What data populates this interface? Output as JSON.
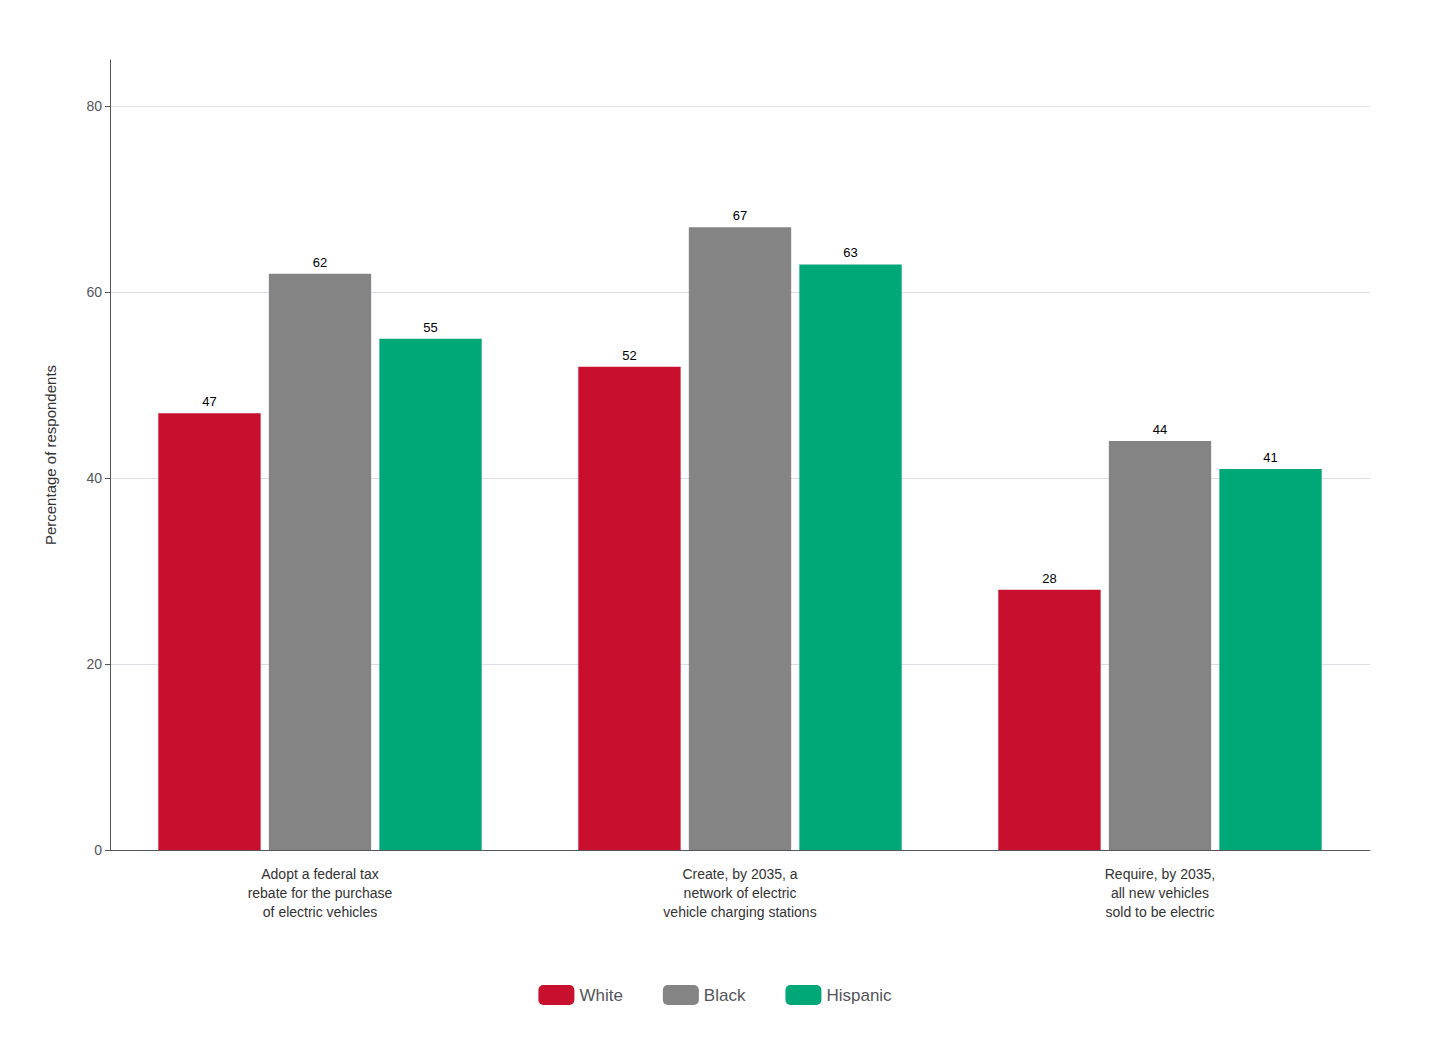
{
  "chart_data": {
    "type": "bar",
    "categories": [
      "Adopt a federal tax\nrebate for the purchase\nof electric vehicles",
      "Create, by 2035, a\nnetwork of electric\nvehicle charging stations",
      "Require, by 2035,\nall new vehicles\nsold to be electric"
    ],
    "series": [
      {
        "name": "White",
        "color": "#C8102E",
        "values": [
          47,
          52,
          28
        ]
      },
      {
        "name": "Black",
        "color": "#848484",
        "values": [
          62,
          67,
          44
        ]
      },
      {
        "name": "Hispanic",
        "color": "#00A878",
        "values": [
          55,
          63,
          41
        ]
      }
    ],
    "ylabel": "Percentage of respondents",
    "ylim": [
      0,
      85
    ],
    "yticks": [
      0,
      20,
      40,
      60,
      80
    ],
    "grid": true,
    "data_labels": true,
    "legend": "bottom"
  }
}
